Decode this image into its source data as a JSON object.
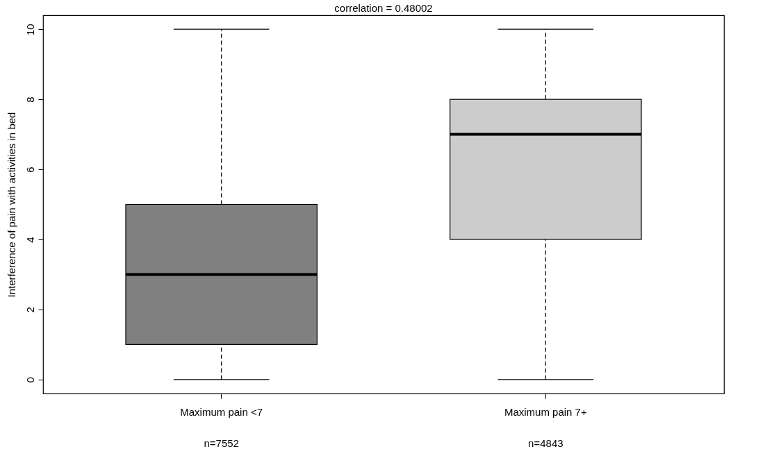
{
  "chart_data": {
    "type": "box",
    "title": "correlation =  0.48002",
    "ylabel": "Interference of pain with activities in bed",
    "categories": [
      "Maximum pain <7",
      "Maximum pain 7+"
    ],
    "series": [
      {
        "colors": [
          "#808080",
          "#cccccc"
        ],
        "boxes": [
          {
            "low": 0,
            "q1": 1,
            "median": 3,
            "q3": 5,
            "high": 10
          },
          {
            "low": 0,
            "q1": 4,
            "median": 7,
            "q3": 8,
            "high": 10
          }
        ]
      }
    ],
    "ylim": [
      -0.4,
      10.4
    ],
    "yticks": [
      0,
      2,
      4,
      6,
      8,
      10
    ],
    "grid": false,
    "annotations": [
      "n=7552",
      "n=4843"
    ]
  }
}
